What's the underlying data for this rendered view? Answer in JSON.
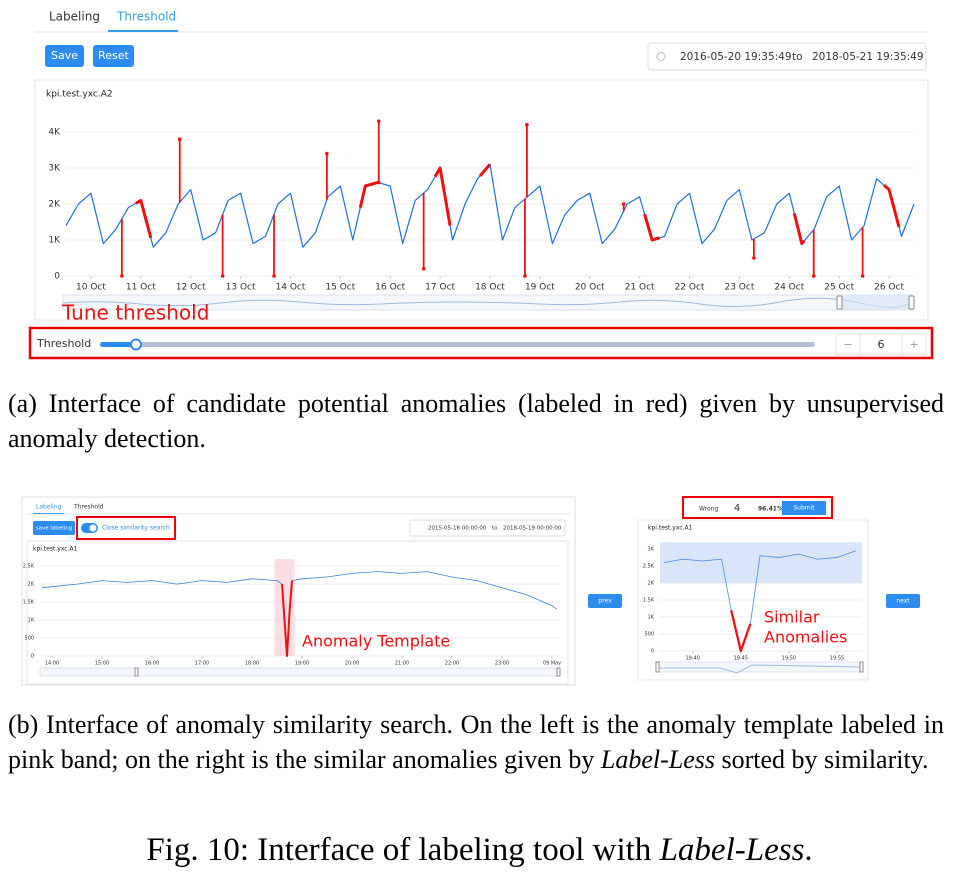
{
  "panel_a": {
    "tabs": [
      "Labeling",
      "Threshold"
    ],
    "buttons": [
      "Save",
      "Reset"
    ],
    "date_from": "2016-05-20 19:35:49",
    "date_sep": "to",
    "date_to": "2018-05-21 19:35:49",
    "chart": {
      "type": "line",
      "title": "kpi.test.yxc.A2",
      "xlim": [
        9.5,
        26.5
      ],
      "xticks": [
        {
          "value": 10,
          "label": "10 Oct"
        },
        {
          "value": 11,
          "label": "11 Oct"
        },
        {
          "value": 12,
          "label": "12 Oct"
        },
        {
          "value": 13,
          "label": "13 Oct"
        },
        {
          "value": 14,
          "label": "14 Oct"
        },
        {
          "value": 15,
          "label": "15 Oct"
        },
        {
          "value": 16,
          "label": "16 Oct"
        },
        {
          "value": 17,
          "label": "17 Oct"
        },
        {
          "value": 18,
          "label": "18 Oct"
        },
        {
          "value": 19,
          "label": "19 Oct"
        },
        {
          "value": 20,
          "label": "20 Oct"
        },
        {
          "value": 21,
          "label": "21 Oct"
        },
        {
          "value": 22,
          "label": "22 Oct"
        },
        {
          "value": 23,
          "label": "23 Oct"
        },
        {
          "value": 24,
          "label": "24 Oct"
        },
        {
          "value": 25,
          "label": "25 Oct"
        },
        {
          "value": 26,
          "label": "26 Oct"
        }
      ],
      "ylim": [
        0,
        4400
      ],
      "yticks": [
        0,
        {
          "value": 1000,
          "label": "1K"
        },
        {
          "value": 2000,
          "label": "2K"
        },
        {
          "value": 3000,
          "label": "3K"
        },
        {
          "value": 4000,
          "label": "4K"
        }
      ],
      "grid": true,
      "x": [
        9.5,
        9.75,
        10,
        10.25,
        10.5,
        10.75,
        11,
        11.25,
        11.5,
        11.75,
        12,
        12.25,
        12.5,
        12.75,
        13,
        13.25,
        13.5,
        13.75,
        14,
        14.25,
        14.5,
        14.75,
        15,
        15.25,
        15.5,
        15.75,
        16,
        16.25,
        16.5,
        16.75,
        17,
        17.25,
        17.5,
        17.75,
        18,
        18.25,
        18.5,
        18.75,
        19,
        19.25,
        19.5,
        19.75,
        20,
        20.25,
        20.5,
        20.75,
        21,
        21.25,
        21.5,
        21.75,
        22,
        22.25,
        22.5,
        22.75,
        23,
        23.25,
        23.5,
        23.75,
        24,
        24.25,
        24.5,
        24.75,
        25,
        25.25,
        25.5,
        25.75,
        26,
        26.25,
        26.5
      ],
      "series": [
        {
          "color": "#1f6fe0",
          "values": [
            1400,
            2000,
            2300,
            900,
            1300,
            1900,
            2100,
            800,
            1200,
            2000,
            2400,
            1000,
            1200,
            2100,
            2300,
            900,
            1100,
            2000,
            2300,
            800,
            1200,
            2200,
            2500,
            1000,
            2500,
            2600,
            2500,
            900,
            2100,
            2400,
            3000,
            1000,
            2000,
            2700,
            3100,
            1000,
            1900,
            2200,
            2500,
            900,
            1700,
            2100,
            2300,
            900,
            1300,
            2000,
            2200,
            1000,
            1100,
            2000,
            2300,
            900,
            1300,
            2100,
            2400,
            1000,
            1200,
            2000,
            2300,
            900,
            1300,
            2200,
            2500,
            1000,
            1400,
            2700,
            2400,
            1100,
            2000
          ]
        }
      ],
      "segments": {
        "color": "#ee1111",
        "x": [
          [
            10.9,
            11.2
          ],
          [
            15.4,
            15.8
          ],
          [
            16.9,
            17.2
          ],
          [
            17.8,
            18.0
          ],
          [
            21.1,
            21.4
          ],
          [
            24.1,
            24.3
          ],
          [
            25.9,
            26.2
          ]
        ]
      },
      "anomalies": {
        "color": "#ee1111",
        "x": [
          10.62,
          11.78,
          12.64,
          13.67,
          14.73,
          15.77,
          16.67,
          18.7,
          18.74,
          20.68,
          23.29,
          24.49,
          25.47
        ],
        "values": [
          0,
          3800,
          0,
          0,
          3400,
          4300,
          200,
          0,
          4200,
          2000,
          500,
          0,
          0
        ]
      }
    },
    "annotation": "Tune threshold",
    "threshold_label": "Threshold",
    "threshold_minus": "−",
    "threshold_value": 6,
    "threshold_plus": "+"
  },
  "caption_a": "(a) Interface of candidate potential anomalies (labeled in red) given by unsupervised anomaly detection.",
  "panel_b": {
    "tabs": [
      "Labeling",
      "Threshold"
    ],
    "button": "save labeling",
    "toggle_label": "Close similarity search",
    "date_from": "2015-05-18 00:00:00",
    "date_sep": "to",
    "date_to": "2018-05-19 00:00:00",
    "left_chart": {
      "type": "line",
      "title": "kpi.test.yxc.A1",
      "xlim": [
        13.76,
        24.16
      ],
      "xticks": [
        {
          "value": 14,
          "label": "14:00"
        },
        {
          "value": 15,
          "label": "15:00"
        },
        {
          "value": 16,
          "label": "16:00"
        },
        {
          "value": 17,
          "label": "17:00"
        },
        {
          "value": 18,
          "label": "18:00"
        },
        {
          "value": 19,
          "label": "19:00"
        },
        {
          "value": 20,
          "label": "20:00"
        },
        {
          "value": 21,
          "label": "21:00"
        },
        {
          "value": 22,
          "label": "22:00"
        },
        {
          "value": 23,
          "label": "23:00"
        },
        {
          "value": 24,
          "label": "09 May"
        }
      ],
      "ylim": [
        0,
        2700
      ],
      "yticks": [
        0,
        500,
        {
          "value": 1000,
          "label": "1K"
        },
        {
          "value": 1500,
          "label": "1.5K"
        },
        {
          "value": 2000,
          "label": "2K"
        },
        {
          "value": 2500,
          "label": "2.5K"
        }
      ],
      "grid": true,
      "x": [
        13.8,
        14.5,
        15,
        15.5,
        16,
        16.5,
        17,
        17.5,
        18,
        18.5,
        18.6,
        18.65,
        18.7,
        18.75,
        18.8,
        19,
        19.5,
        20,
        20.5,
        21,
        21.5,
        22,
        22.5,
        23,
        23.5,
        24,
        24.1
      ],
      "series": [
        {
          "color": "#3b7fe0",
          "values": [
            1900,
            2000,
            2100,
            2050,
            2100,
            2000,
            2100,
            2050,
            2150,
            2100,
            2000,
            1000,
            0,
            1200,
            2100,
            2150,
            2200,
            2300,
            2350,
            2300,
            2350,
            2200,
            2100,
            1900,
            1700,
            1400,
            1300
          ]
        }
      ],
      "pink_band": [
        18.45,
        18.85
      ],
      "segments": {
        "color": "#ee1111",
        "x": [
          [
            18.6,
            18.8
          ]
        ]
      }
    },
    "annotation_left": "Anomaly Template",
    "prev": "prev",
    "next": "next",
    "wrong_label": "Wrong",
    "wrong_count": 4,
    "accuracy": "96.41%",
    "submit": "Submit",
    "right_chart": {
      "type": "line",
      "title": "kpi.test.yxc.A1",
      "xlim": [
        36.6,
        57.6
      ],
      "xticks": [
        {
          "value": 40,
          "label": "19:40"
        },
        {
          "value": 45,
          "label": "19:45"
        },
        {
          "value": 50,
          "label": "19:50"
        },
        {
          "value": 55,
          "label": "19:55"
        }
      ],
      "ylim": [
        0,
        3100
      ],
      "yticks": [
        0,
        500,
        {
          "value": 1000,
          "label": "1K"
        },
        {
          "value": 1500,
          "label": "1.5K"
        },
        {
          "value": 2000,
          "label": "2K"
        },
        {
          "value": 2500,
          "label": "2.5K"
        },
        {
          "value": 3000,
          "label": "3K"
        }
      ],
      "grid": true,
      "x": [
        37,
        39,
        41,
        43,
        44,
        45,
        46,
        47,
        49,
        51,
        53,
        55,
        57
      ],
      "series": [
        {
          "color": "#5a95e6",
          "values": [
            2600,
            2700,
            2650,
            2700,
            1200,
            0,
            800,
            2800,
            2750,
            2850,
            2700,
            2750,
            2950
          ]
        }
      ],
      "band": [
        2000,
        3200
      ],
      "segments": {
        "color": "#ee1111",
        "x": [
          [
            44,
            46
          ]
        ]
      }
    },
    "annotation_right": [
      "Similar",
      "Anomalies"
    ]
  },
  "caption_b": [
    "(b) Interface of anomaly similarity search. On the left is the anomaly template labeled in pink band; on the right is the similar anomalies given by ",
    "Label-Less",
    " sorted by similarity."
  ],
  "figure_caption": [
    "Fig. 10: Interface of labeling tool with ",
    "Label-Less",
    "."
  ]
}
